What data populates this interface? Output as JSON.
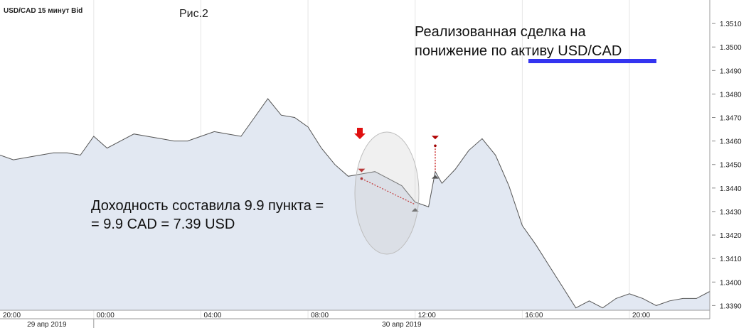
{
  "chart_data": {
    "type": "area",
    "title": "USD/CAD  15 минут Bid",
    "figure_label": "Рис.2",
    "annotations": [
      {
        "lines": [
          "Реализованная сделка на",
          "понижение по активу USD/CAD"
        ]
      },
      {
        "lines": [
          "Доходность составила 9.9 пункта =",
          "= 9.9 CAD = 7.39 USD"
        ]
      }
    ],
    "color": "#555555",
    "fill": "#e2e8f2",
    "x": [
      "2019-04-29T20:30",
      "2019-04-29T21:00",
      "2019-04-29T21:30",
      "2019-04-29T22:00",
      "2019-04-29T22:30",
      "2019-04-29T23:00",
      "2019-04-29T23:30",
      "2019-04-30T00:00",
      "2019-04-30T00:30",
      "2019-04-30T01:00",
      "2019-04-30T01:30",
      "2019-04-30T02:00",
      "2019-04-30T02:30",
      "2019-04-30T03:00",
      "2019-04-30T03:30",
      "2019-04-30T04:00",
      "2019-04-30T04:30",
      "2019-04-30T05:00",
      "2019-04-30T05:30",
      "2019-04-30T06:00",
      "2019-04-30T06:30",
      "2019-04-30T07:00",
      "2019-04-30T07:30",
      "2019-04-30T08:00",
      "2019-04-30T08:30",
      "2019-04-30T09:00",
      "2019-04-30T09:30",
      "2019-04-30T10:00",
      "2019-04-30T10:30",
      "2019-04-30T11:00",
      "2019-04-30T11:30",
      "2019-04-30T12:00",
      "2019-04-30T12:15",
      "2019-04-30T12:30",
      "2019-04-30T12:45",
      "2019-04-30T13:00",
      "2019-04-30T13:30",
      "2019-04-30T14:00",
      "2019-04-30T14:30",
      "2019-04-30T15:00",
      "2019-04-30T15:30",
      "2019-04-30T16:00",
      "2019-04-30T16:30",
      "2019-04-30T17:00",
      "2019-04-30T17:30",
      "2019-04-30T18:00",
      "2019-04-30T18:30",
      "2019-04-30T19:00",
      "2019-04-30T19:30",
      "2019-04-30T20:00",
      "2019-04-30T20:30",
      "2019-04-30T21:00",
      "2019-04-30T21:30",
      "2019-04-30T22:00",
      "2019-04-30T22:30",
      "2019-04-30T23:00"
    ],
    "values": [
      1.3454,
      1.3452,
      1.3453,
      1.3454,
      1.3455,
      1.3455,
      1.3454,
      1.3462,
      1.3457,
      1.346,
      1.3463,
      1.3462,
      1.3461,
      1.346,
      1.346,
      1.3462,
      1.3464,
      1.3463,
      1.3462,
      1.347,
      1.3478,
      1.3471,
      1.347,
      1.3466,
      1.3457,
      1.345,
      1.3445,
      1.3446,
      1.3447,
      1.3444,
      1.3441,
      1.3434,
      1.3433,
      1.3432,
      1.3447,
      1.3442,
      1.3448,
      1.3456,
      1.3461,
      1.3454,
      1.3441,
      1.3424,
      1.3416,
      1.3407,
      1.3398,
      1.3389,
      1.3392,
      1.3389,
      1.3393,
      1.3395,
      1.3393,
      1.339,
      1.3392,
      1.3393,
      1.3393,
      1.3396
    ],
    "trades": [
      {
        "open_time": "2019-04-30T10:00",
        "open_price": 1.3444,
        "close_time": "2019-04-30T12:00",
        "close_price": 1.3433
      },
      {
        "open_time": "2019-04-30T12:45",
        "open_price": 1.3458,
        "close_time": "2019-04-30T12:45",
        "close_price": 1.3447
      }
    ],
    "xlim": [
      "2019-04-29T20:30",
      "2019-04-30T23:00"
    ],
    "xticks": [
      {
        "value": "2019-04-29T20:00",
        "label": "20:00"
      },
      {
        "value": "2019-04-30T00:00",
        "label": "00:00"
      },
      {
        "value": "2019-04-30T04:00",
        "label": "04:00"
      },
      {
        "value": "2019-04-30T08:00",
        "label": "08:00"
      },
      {
        "value": "2019-04-30T12:00",
        "label": "12:00"
      },
      {
        "value": "2019-04-30T16:00",
        "label": "16:00"
      },
      {
        "value": "2019-04-30T20:00",
        "label": "20:00"
      }
    ],
    "date_labels": [
      {
        "value": "2019-04-29",
        "label": "29 апр 2019"
      },
      {
        "value": "2019-04-30",
        "label": "30 апр 2019"
      }
    ],
    "ylim": [
      1.3388,
      1.352
    ],
    "yticks": [
      {
        "value": 1.339,
        "label": "1.3390"
      },
      {
        "value": 1.34,
        "label": "1.3400"
      },
      {
        "value": 1.341,
        "label": "1.3410"
      },
      {
        "value": 1.342,
        "label": "1.3420"
      },
      {
        "value": 1.343,
        "label": "1.3430"
      },
      {
        "value": 1.344,
        "label": "1.3440"
      },
      {
        "value": 1.345,
        "label": "1.3450"
      },
      {
        "value": 1.346,
        "label": "1.3460"
      },
      {
        "value": 1.347,
        "label": "1.3470"
      },
      {
        "value": 1.348,
        "label": "1.3480"
      },
      {
        "value": 1.349,
        "label": "1.3490"
      },
      {
        "value": 1.35,
        "label": "1.3500"
      },
      {
        "value": 1.351,
        "label": "1.3510"
      }
    ]
  }
}
